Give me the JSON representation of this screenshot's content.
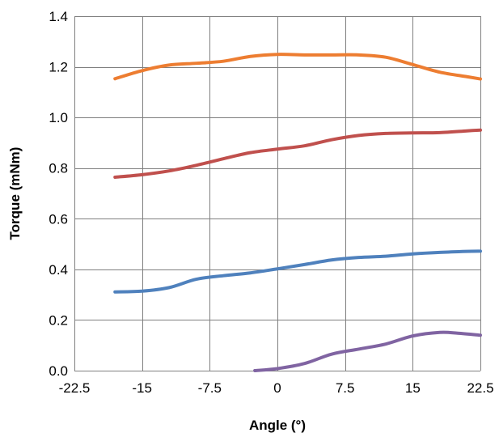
{
  "chart_data": {
    "type": "line",
    "title": "",
    "xlabel": "Angle (°)",
    "ylabel": "Torque (mNm)",
    "xlim": [
      -22.5,
      22.5
    ],
    "ylim": [
      0.0,
      1.4
    ],
    "x_ticks": [
      -22.5,
      -15,
      -7.5,
      0,
      7.5,
      15,
      22.5
    ],
    "x_tick_labels": [
      "-22.5",
      "-15",
      "-7.5",
      "0",
      "7.5",
      "15",
      "22.5"
    ],
    "y_ticks": [
      0.0,
      0.2,
      0.4,
      0.6,
      0.8,
      1.0,
      1.2,
      1.4
    ],
    "y_tick_labels": [
      "0.0",
      "0.2",
      "0.4",
      "0.6",
      "0.8",
      "1.0",
      "1.2",
      "1.4"
    ],
    "grid": true,
    "legend": "none",
    "series": [
      {
        "color": "#ED7D31",
        "x": [
          -18,
          -15,
          -12,
          -9,
          -6,
          -3,
          0,
          3,
          6,
          9,
          12,
          15,
          18,
          21,
          22.5
        ],
        "y": [
          1.153,
          1.185,
          1.207,
          1.214,
          1.222,
          1.241,
          1.249,
          1.247,
          1.247,
          1.247,
          1.238,
          1.209,
          1.179,
          1.161,
          1.152
        ]
      },
      {
        "color": "#C0504D",
        "x": [
          -18,
          -15,
          -12,
          -9,
          -6,
          -3,
          0,
          3,
          6,
          9,
          12,
          15,
          18,
          21,
          22.5
        ],
        "y": [
          0.764,
          0.774,
          0.789,
          0.811,
          0.837,
          0.861,
          0.875,
          0.888,
          0.912,
          0.929,
          0.937,
          0.939,
          0.94,
          0.947,
          0.95
        ]
      },
      {
        "color": "#4F81BD",
        "x": [
          -18,
          -15,
          -12,
          -9,
          -6,
          -3,
          0,
          3,
          6,
          9,
          12,
          15,
          18,
          21,
          22.5
        ],
        "y": [
          0.311,
          0.314,
          0.328,
          0.361,
          0.375,
          0.386,
          0.402,
          0.419,
          0.437,
          0.447,
          0.452,
          0.461,
          0.467,
          0.471,
          0.472
        ]
      },
      {
        "color": "#8064A2",
        "x": [
          -2.5,
          0,
          3,
          6,
          9,
          12,
          15,
          18,
          20,
          22.5
        ],
        "y": [
          0.0,
          0.008,
          0.028,
          0.065,
          0.085,
          0.105,
          0.137,
          0.151,
          0.148,
          0.14
        ]
      }
    ]
  }
}
